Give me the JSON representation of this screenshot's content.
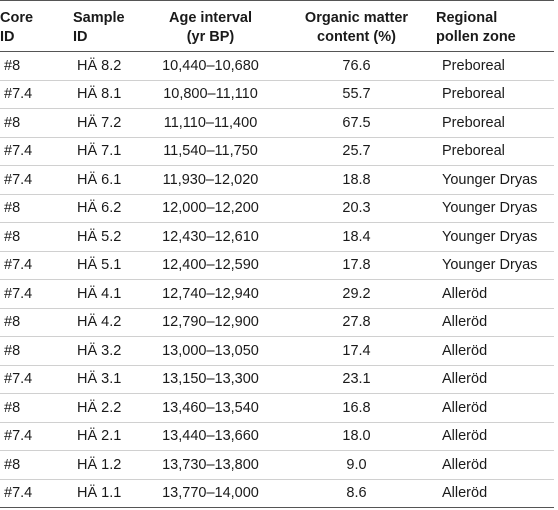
{
  "headers": {
    "core_id": "Core\nID",
    "sample_id": "Sample\nID",
    "age_interval": "Age interval\n(yr BP)",
    "organic_matter": "Organic matter\ncontent (%)",
    "pollen_zone": "Regional\npollen zone"
  },
  "rows": [
    {
      "core": "#8",
      "sample": "HÄ 8.2",
      "age": "10,440–10,680",
      "om": "76.6",
      "zone": "Preboreal"
    },
    {
      "core": "#7.4",
      "sample": "HÄ 8.1",
      "age": "10,800–11,110",
      "om": "55.7",
      "zone": "Preboreal"
    },
    {
      "core": "#8",
      "sample": "HÄ 7.2",
      "age": "11,110–11,400",
      "om": "67.5",
      "zone": "Preboreal"
    },
    {
      "core": "#7.4",
      "sample": "HÄ 7.1",
      "age": "11,540–11,750",
      "om": "25.7",
      "zone": "Preboreal"
    },
    {
      "core": "#7.4",
      "sample": "HÄ 6.1",
      "age": "11,930–12,020",
      "om": "18.8",
      "zone": "Younger Dryas"
    },
    {
      "core": "#8",
      "sample": "HÄ 6.2",
      "age": "12,000–12,200",
      "om": "20.3",
      "zone": "Younger Dryas"
    },
    {
      "core": "#8",
      "sample": "HÄ 5.2",
      "age": "12,430–12,610",
      "om": "18.4",
      "zone": "Younger Dryas"
    },
    {
      "core": "#7.4",
      "sample": "HÄ 5.1",
      "age": "12,400–12,590",
      "om": "17.8",
      "zone": "Younger Dryas"
    },
    {
      "core": "#7.4",
      "sample": "HÄ 4.1",
      "age": "12,740–12,940",
      "om": "29.2",
      "zone": "Alleröd"
    },
    {
      "core": "#8",
      "sample": "HÄ 4.2",
      "age": "12,790–12,900",
      "om": "27.8",
      "zone": "Alleröd"
    },
    {
      "core": "#8",
      "sample": "HÄ 3.2",
      "age": "13,000–13,050",
      "om": "17.4",
      "zone": "Alleröd"
    },
    {
      "core": "#7.4",
      "sample": "HÄ 3.1",
      "age": "13,150–13,300",
      "om": "23.1",
      "zone": "Alleröd"
    },
    {
      "core": "#8",
      "sample": "HÄ 2.2",
      "age": "13,460–13,540",
      "om": "16.8",
      "zone": "Alleröd"
    },
    {
      "core": "#7.4",
      "sample": "HÄ 2.1",
      "age": "13,440–13,660",
      "om": "18.0",
      "zone": "Alleröd"
    },
    {
      "core": "#8",
      "sample": "HÄ 1.2",
      "age": "13,730–13,800",
      "om": "9.0",
      "zone": "Alleröd"
    },
    {
      "core": "#7.4",
      "sample": "HÄ 1.1",
      "age": "13,770–14,000",
      "om": "8.6",
      "zone": "Alleröd"
    }
  ]
}
